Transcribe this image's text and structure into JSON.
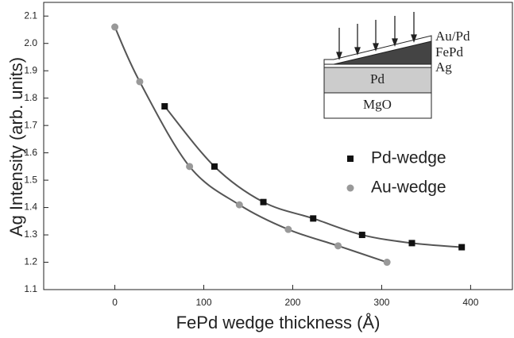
{
  "chart_data": {
    "type": "scatter",
    "xlabel": "FePd wedge thickness (Å)",
    "ylabel": "Ag Intensity (arb. units)",
    "xlim": [
      -80,
      447
    ],
    "xticks": [
      0,
      100,
      200,
      300,
      400
    ],
    "ylim": [
      1.1,
      2.15
    ],
    "yticks": [
      1.1,
      1.2,
      1.3,
      1.4,
      1.5,
      1.6,
      1.7,
      1.8,
      1.9,
      {
        "value": 2,
        "label": "2.0"
      },
      2.1
    ],
    "series": [
      {
        "name": "Pd-wedge",
        "color": "#111111",
        "marker": "square",
        "x": [
          56,
          112,
          167,
          223,
          278,
          334,
          390
        ],
        "values": [
          1.77,
          1.55,
          1.42,
          1.36,
          1.3,
          1.27,
          1.255
        ]
      },
      {
        "name": "Au-wedge",
        "color": "#999999",
        "marker": "circle",
        "x": [
          0,
          28,
          84,
          140,
          195,
          251,
          306
        ],
        "values": [
          2.06,
          1.86,
          1.55,
          1.41,
          1.32,
          1.26,
          1.2
        ]
      }
    ],
    "annotations": [
      "Au/Pd",
      "FePd",
      "Ag",
      "Pd",
      "MgO"
    ]
  }
}
